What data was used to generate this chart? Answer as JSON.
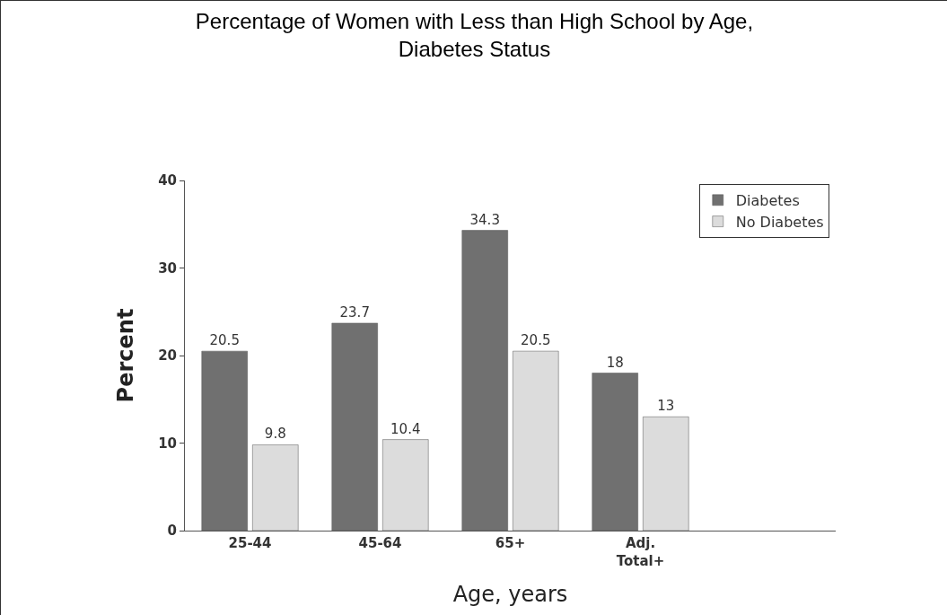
{
  "chart_data": {
    "type": "bar",
    "title": "Percentage of Women with Less than High School by Age,\nDiabetes Status",
    "xlabel": "Age, years",
    "ylabel": "Percent",
    "categories": [
      "25-44",
      "45-64",
      "65+",
      "Adj.\nTotal+",
      null
    ],
    "series": [
      {
        "name": "Diabetes",
        "color": "#707070",
        "values": [
          20.5,
          23.7,
          34.3,
          18,
          null
        ]
      },
      {
        "name": "No Diabetes",
        "color": "#dcdcdc",
        "values": [
          9.8,
          10.4,
          20.5,
          13,
          null
        ]
      }
    ],
    "ylim": [
      0,
      40
    ],
    "yticks": [
      0,
      10,
      20,
      30,
      40
    ],
    "grid": false,
    "legend": "top right",
    "data_labels": true
  }
}
